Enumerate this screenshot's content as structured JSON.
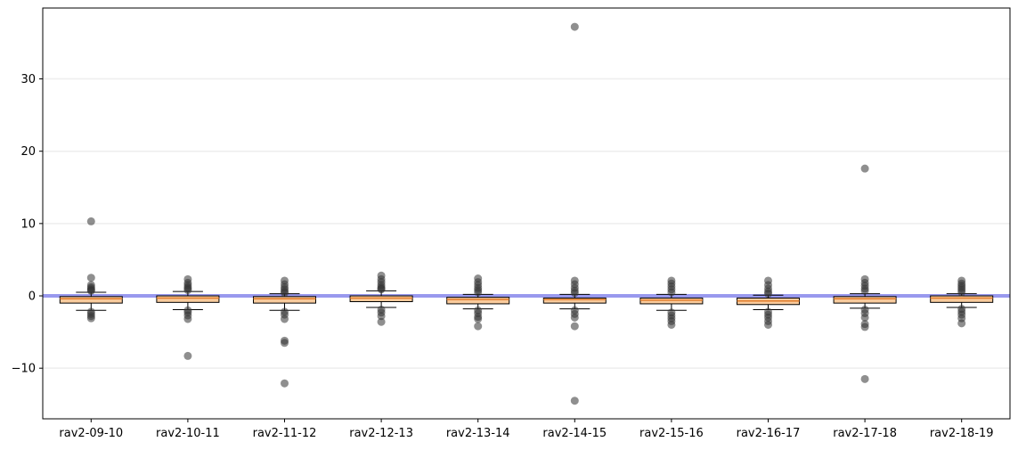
{
  "chart_data": {
    "type": "box",
    "title": "",
    "xlabel": "",
    "ylabel": "",
    "categories": [
      "rav2-09-10",
      "rav2-10-11",
      "rav2-11-12",
      "rav2-12-13",
      "rav2-13-14",
      "rav2-14-15",
      "rav2-15-16",
      "rav2-16-17",
      "rav2-17-18",
      "rav2-18-19"
    ],
    "ylim": [
      -17.0,
      39.8
    ],
    "yticks": [
      -10,
      0,
      10,
      20,
      30
    ],
    "grid": "horizontal",
    "reference_line": {
      "y": 0,
      "color": "#9999ee"
    },
    "box_color": "#f9cb9c",
    "outlier_color": "#333333",
    "boxes": [
      {
        "whislo": -2.0,
        "q1": -1.0,
        "med": -0.4,
        "q3": -0.1,
        "whishi": 0.5,
        "fliers": [
          10.3,
          2.5,
          1.5,
          1.2,
          1.0,
          0.8,
          0.7,
          -2.2,
          -2.5,
          -2.8,
          -3.1
        ]
      },
      {
        "whislo": -1.9,
        "q1": -0.9,
        "med": -0.3,
        "q3": 0.0,
        "whishi": 0.6,
        "fliers": [
          2.3,
          1.8,
          1.5,
          1.2,
          1.0,
          0.8,
          -2.0,
          -2.3,
          -2.7,
          -3.2,
          -8.3
        ]
      },
      {
        "whislo": -2.0,
        "q1": -1.0,
        "med": -0.4,
        "q3": -0.1,
        "whishi": 0.3,
        "fliers": [
          2.1,
          1.6,
          1.2,
          0.9,
          0.6,
          0.4,
          -2.2,
          -2.6,
          -3.2,
          -6.2,
          -6.5,
          -12.1
        ]
      },
      {
        "whislo": -1.6,
        "q1": -0.8,
        "med": -0.3,
        "q3": 0.0,
        "whishi": 0.7,
        "fliers": [
          2.8,
          2.3,
          1.9,
          1.5,
          1.2,
          1.0,
          0.9,
          -1.9,
          -2.3,
          -2.8,
          -3.6
        ]
      },
      {
        "whislo": -1.8,
        "q1": -1.1,
        "med": -0.5,
        "q3": -0.2,
        "whishi": 0.2,
        "fliers": [
          2.4,
          1.9,
          1.5,
          1.1,
          0.8,
          0.5,
          -2.0,
          -2.4,
          -2.9,
          -3.2,
          -4.2
        ]
      },
      {
        "whislo": -1.8,
        "q1": -1.0,
        "med": -0.5,
        "q3": -0.3,
        "whishi": 0.2,
        "fliers": [
          37.2,
          2.1,
          1.6,
          1.1,
          0.7,
          0.4,
          -2.0,
          -2.5,
          -3.0,
          -4.2,
          -14.5
        ]
      },
      {
        "whislo": -2.0,
        "q1": -1.1,
        "med": -0.6,
        "q3": -0.3,
        "whishi": 0.2,
        "fliers": [
          2.1,
          1.7,
          1.3,
          0.9,
          0.5,
          -2.3,
          -2.7,
          -3.1,
          -3.5,
          -4.0
        ]
      },
      {
        "whislo": -1.9,
        "q1": -1.2,
        "med": -0.7,
        "q3": -0.3,
        "whishi": 0.1,
        "fliers": [
          2.1,
          1.5,
          1.0,
          0.6,
          0.3,
          -2.2,
          -2.6,
          -3.0,
          -3.5,
          -4.0
        ]
      },
      {
        "whislo": -1.7,
        "q1": -1.0,
        "med": -0.4,
        "q3": -0.1,
        "whishi": 0.3,
        "fliers": [
          17.6,
          2.3,
          1.8,
          1.4,
          1.0,
          0.7,
          -1.9,
          -2.4,
          -3.0,
          -3.9,
          -4.3,
          -11.5
        ]
      },
      {
        "whislo": -1.6,
        "q1": -0.9,
        "med": -0.3,
        "q3": 0.0,
        "whishi": 0.3,
        "fliers": [
          2.1,
          1.7,
          1.4,
          1.1,
          0.8,
          0.5,
          -1.8,
          -2.2,
          -2.6,
          -3.1,
          -3.8
        ]
      }
    ]
  }
}
